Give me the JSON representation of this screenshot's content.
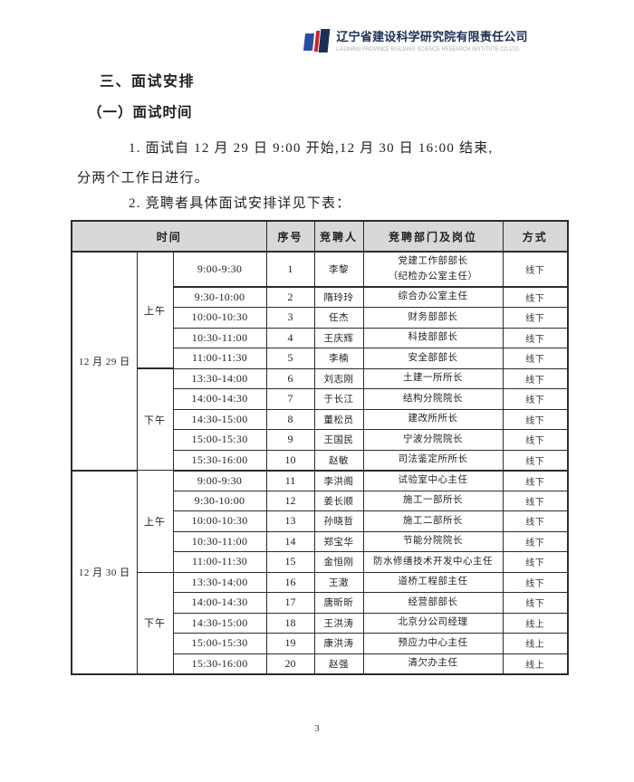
{
  "logo": {
    "company_cn": "辽宁省建设科学研究院有限责任公司",
    "company_en": "LIAONING PROVINCE BUILDING SCIENCE RESEARCH INSTITUTE CO.LTD.",
    "colors": {
      "blue": "#2b4ea2",
      "navy": "#1c2f55",
      "red": "#c9242b",
      "en_gray": "#a9a9a9"
    }
  },
  "headings": {
    "section": "三、面试安排",
    "subsection": "（一）面试时间"
  },
  "paragraphs": {
    "p1_line1": "1. 面试自 12 月 29 日 9:00 开始,12 月 30 日 16:00 结束,",
    "p1_line2": "分两个工作日进行。",
    "p2": "2. 竞聘者具体面试安排详见下表："
  },
  "table": {
    "header_bg": "#d8d8d8",
    "headers": {
      "time": "时间",
      "no": "序号",
      "candidate": "竞聘人",
      "position": "竞聘部门及岗位",
      "mode": "方式"
    },
    "groups": [
      {
        "date": "12 月 29 日",
        "periods": [
          {
            "label": "上午",
            "rows": [
              {
                "time": "9:00-9:30",
                "no": "1",
                "name": "李黎",
                "position": "党建工作部部长\n（纪检办公室主任）",
                "mode": "线下"
              },
              {
                "time": "9:30-10:00",
                "no": "2",
                "name": "隋玲玲",
                "position": "综合办公室主任",
                "mode": "线下"
              },
              {
                "time": "10:00-10:30",
                "no": "3",
                "name": "任杰",
                "position": "财务部部长",
                "mode": "线下"
              },
              {
                "time": "10:30-11:00",
                "no": "4",
                "name": "王庆辉",
                "position": "科技部部长",
                "mode": "线下"
              },
              {
                "time": "11:00-11:30",
                "no": "5",
                "name": "李楠",
                "position": "安全部部长",
                "mode": "线下"
              }
            ]
          },
          {
            "label": "下午",
            "rows": [
              {
                "time": "13:30-14:00",
                "no": "6",
                "name": "刘志刚",
                "position": "土建一所所长",
                "mode": "线下"
              },
              {
                "time": "14:00-14:30",
                "no": "7",
                "name": "于长江",
                "position": "结构分院院长",
                "mode": "线下"
              },
              {
                "time": "14:30-15:00",
                "no": "8",
                "name": "董松员",
                "position": "建改所所长",
                "mode": "线下"
              },
              {
                "time": "15:00-15:30",
                "no": "9",
                "name": "王国民",
                "position": "宁波分院院长",
                "mode": "线下"
              },
              {
                "time": "15:30-16:00",
                "no": "10",
                "name": "赵敏",
                "position": "司法鉴定所所长",
                "mode": "线下"
              }
            ]
          }
        ]
      },
      {
        "date": "12 月 30 日",
        "periods": [
          {
            "label": "上午",
            "rows": [
              {
                "time": "9:00-9:30",
                "no": "11",
                "name": "李洪阁",
                "position": "试验室中心主任",
                "mode": "线下"
              },
              {
                "time": "9:30-10:00",
                "no": "12",
                "name": "姜长顺",
                "position": "施工一部所长",
                "mode": "线下"
              },
              {
                "time": "10:00-10:30",
                "no": "13",
                "name": "孙晓哲",
                "position": "施工二部所长",
                "mode": "线下"
              },
              {
                "time": "10:30-11:00",
                "no": "14",
                "name": "郑宝华",
                "position": "节能分院院长",
                "mode": "线下"
              },
              {
                "time": "11:00-11:30",
                "no": "15",
                "name": "金恒刚",
                "position": "防水修缮技术开发中心主任",
                "mode": "线下"
              }
            ]
          },
          {
            "label": "下午",
            "rows": [
              {
                "time": "13:30-14:00",
                "no": "16",
                "name": "王澈",
                "position": "道桥工程部主任",
                "mode": "线下"
              },
              {
                "time": "14:00-14:30",
                "no": "17",
                "name": "唐昕昕",
                "position": "经营部部长",
                "mode": "线下"
              },
              {
                "time": "14:30-15:00",
                "no": "18",
                "name": "王洪涛",
                "position": "北京分公司经理",
                "mode": "线上"
              },
              {
                "time": "15:00-15:30",
                "no": "19",
                "name": "康洪涛",
                "position": "预应力中心主任",
                "mode": "线上"
              },
              {
                "time": "15:30-16:00",
                "no": "20",
                "name": "赵强",
                "position": "清欠办主任",
                "mode": "线上"
              }
            ]
          }
        ]
      }
    ]
  },
  "footer": {
    "page_number": "3"
  }
}
